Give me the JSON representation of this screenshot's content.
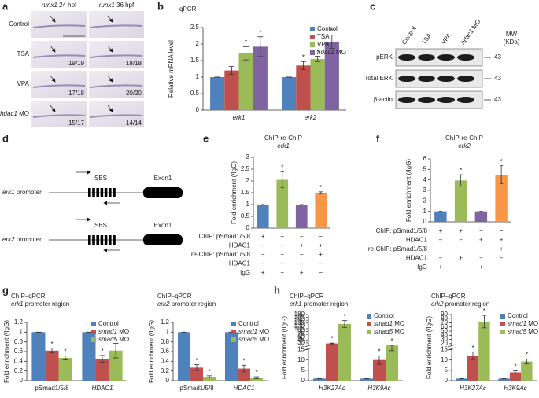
{
  "panel_a": {
    "label": "a",
    "columns": [
      "runx1 24 hpf",
      "runx1 36 hpf"
    ],
    "rows": [
      "Control",
      "TSA",
      "VPA",
      "hdac1 MO"
    ],
    "counts": [
      [
        null,
        null
      ],
      [
        "19/19",
        "18/18"
      ],
      [
        "17/18",
        "20/20"
      ],
      [
        "15/17",
        "14/14"
      ]
    ]
  },
  "panel_c": {
    "label": "c",
    "lanes": [
      "Control",
      "TSA",
      "VPA",
      "hdac1 MO"
    ],
    "mw": [
      "MW",
      "(KDa)"
    ],
    "blots": [
      {
        "name": "pERK",
        "size": 43
      },
      {
        "name": "Total ERK",
        "size": 43
      },
      {
        "name": "β-actin",
        "size": 43
      }
    ]
  },
  "panel_d": {
    "label": "d",
    "constructs": [
      {
        "name": "erk1 promoter",
        "site": "SBS",
        "exon": "Exon1"
      },
      {
        "name": "erk2 promoter",
        "site": "SBS",
        "exon": "Exon1"
      }
    ]
  },
  "chart_data": [
    {
      "type": "bar",
      "panel": "b",
      "title": "qPCR",
      "y_label": "Relative mRNA level",
      "categories": [
        "erk1",
        "erk2"
      ],
      "legend": "upper right",
      "series": [
        {
          "name": "Control",
          "color": "#4f81bd",
          "values": [
            1,
            1
          ],
          "errors": [
            0,
            0
          ],
          "significance": [
            null,
            null
          ]
        },
        {
          "name": "TSA",
          "color": "#c0504d",
          "values": [
            1.2,
            1.35
          ],
          "errors": [
            0.12,
            0.12
          ],
          "significance": [
            null,
            "*"
          ]
        },
        {
          "name": "VPA",
          "color": "#9bbb59",
          "values": [
            1.72,
            1.55
          ],
          "errors": [
            0.2,
            0.08
          ],
          "significance": [
            "*",
            "*"
          ]
        },
        {
          "name": "hdac1 MO",
          "color": "#8064a2",
          "values": [
            1.92,
            2.07
          ],
          "errors": [
            0.3,
            0.2
          ],
          "significance": [
            "*",
            "*"
          ]
        }
      ],
      "ylim": [
        0,
        2.5
      ],
      "yticks": [
        0,
        0.5,
        1,
        1.5,
        2,
        2.5
      ]
    },
    {
      "type": "bar",
      "panel": "e",
      "title": "ChIP-re-ChIP",
      "subtitle": "erk1",
      "y_label": "Fold enrichment (/IgG)",
      "values": [
        1,
        2.05,
        1,
        1.5
      ],
      "errors": [
        0,
        0.33,
        0,
        0.04
      ],
      "colors": [
        "#4f81bd",
        "#9bbb59",
        "#8064a2",
        "#f79646"
      ],
      "significance": [
        null,
        "*",
        null,
        "*"
      ],
      "ylim": [
        0,
        3
      ],
      "yticks": [
        0,
        0.5,
        1,
        1.5,
        2,
        2.5,
        3
      ],
      "conditions": {
        "rows": [
          "ChIP: pSmad1/5/8",
          "HDAC1",
          "re-ChIP: pSmad1/5/8",
          "HDAC1",
          "IgG"
        ],
        "signs": [
          [
            "+",
            "+",
            "−",
            "−"
          ],
          [
            "−",
            "−",
            "+",
            "+"
          ],
          [
            "−",
            "−",
            "−",
            "+"
          ],
          [
            "−",
            "+",
            "−",
            "−"
          ],
          [
            "+",
            "−",
            "+",
            "−"
          ]
        ]
      }
    },
    {
      "type": "bar",
      "panel": "f",
      "title": "ChIP-re-ChIP",
      "subtitle": "erk2",
      "y_label": "Fold enrichment (/IgG)",
      "values": [
        1,
        3.95,
        1,
        4.5
      ],
      "errors": [
        0,
        0.55,
        0,
        0.85
      ],
      "colors": [
        "#4f81bd",
        "#9bbb59",
        "#8064a2",
        "#f79646"
      ],
      "significance": [
        null,
        "*",
        null,
        "*"
      ],
      "ylim": [
        0,
        6
      ],
      "yticks": [
        0,
        1,
        2,
        3,
        4,
        5,
        6
      ],
      "conditions": {
        "rows": [
          "ChIP: pSmad1/5/8",
          "HDAC1",
          "re-ChIP: pSmad1/5/8",
          "HDAC1",
          "IgG"
        ],
        "signs": [
          [
            "+",
            "+",
            "−",
            "−"
          ],
          [
            "−",
            "−",
            "+",
            "+"
          ],
          [
            "−",
            "−",
            "−",
            "+"
          ],
          [
            "−",
            "+",
            "−",
            "−"
          ],
          [
            "+",
            "−",
            "+",
            "−"
          ]
        ]
      }
    },
    {
      "type": "bar",
      "panel": "g",
      "title": "ChIP–qPCR",
      "subtitle": "erk1 promoter region",
      "y_label": "Fold enrichment (/IgG)",
      "categories": [
        "pSmad1/5/8",
        "HDAC1"
      ],
      "legend": "upper right",
      "series": [
        {
          "name": "Control",
          "color": "#4f81bd",
          "values": [
            1,
            1
          ],
          "errors": [
            0,
            0
          ],
          "significance": [
            null,
            null
          ]
        },
        {
          "name": "smad1 MO",
          "color": "#c0504d",
          "values": [
            0.62,
            0.45
          ],
          "errors": [
            0.05,
            0.07
          ],
          "significance": [
            "*",
            "*"
          ]
        },
        {
          "name": "smad5 MO",
          "color": "#9bbb59",
          "values": [
            0.47,
            0.62
          ],
          "errors": [
            0.04,
            0.15
          ],
          "significance": [
            "*",
            "*"
          ]
        }
      ],
      "ylim": [
        0,
        1.2
      ],
      "yticks": [
        0,
        0.2,
        0.4,
        0.6,
        0.8,
        1,
        1.2
      ]
    },
    {
      "type": "bar",
      "title": "ChIP–qPCR",
      "subtitle": "erk2 promoter region",
      "y_label": "Fold enrichment (/IgG)",
      "categories": [
        "pSmad1/5/8",
        "HDAC1"
      ],
      "legend": "upper right",
      "series": [
        {
          "name": "Control",
          "color": "#4f81bd",
          "values": [
            1,
            1
          ],
          "errors": [
            0,
            0
          ],
          "significance": [
            null,
            null
          ]
        },
        {
          "name": "smad1 MO",
          "color": "#c0504d",
          "values": [
            0.27,
            0.25
          ],
          "errors": [
            0.06,
            0.07
          ],
          "significance": [
            "*",
            "*"
          ]
        },
        {
          "name": "smad5 MO",
          "color": "#9bbb59",
          "values": [
            0.08,
            0.06
          ],
          "errors": [
            0.02,
            0.02
          ],
          "significance": [
            "*",
            "*"
          ]
        }
      ],
      "ylim": [
        0,
        1.2
      ],
      "yticks": [
        0,
        0.2,
        0.4,
        0.6,
        0.8,
        1,
        1.2
      ]
    },
    {
      "type": "bar",
      "panel": "h",
      "title": "ChIP–qPCR",
      "subtitle": "erk1 promoter region",
      "y_label": "Fold enrichment (/IgG)",
      "categories": [
        "H3K27Ac",
        "H3K9Ac"
      ],
      "legend": "upper right",
      "series": [
        {
          "name": "Control",
          "color": "#4f81bd",
          "values": [
            1,
            1
          ],
          "errors": [
            0,
            0
          ],
          "significance": [
            null,
            null
          ]
        },
        {
          "name": "smad1 MO",
          "color": "#c0504d",
          "values": [
            27,
            10
          ],
          "errors": [
            2,
            2
          ],
          "significance": [
            "*",
            "*"
          ]
        },
        {
          "name": "smad5 MO",
          "color": "#9bbb59",
          "values": [
            130,
            16
          ],
          "errors": [
            18,
            1.5
          ],
          "significance": [
            "*",
            "*"
          ]
        }
      ],
      "ylim": [
        0,
        180
      ],
      "y_break": 15,
      "yticks": [
        0,
        5,
        10,
        15,
        30,
        45,
        60,
        75,
        90,
        105,
        120,
        135,
        150,
        165,
        180
      ]
    },
    {
      "type": "bar",
      "title": "ChIP–qPCR",
      "subtitle": "erk2 promoter region",
      "y_label": "Fold enrichment (/IgG)",
      "categories": [
        "H3K27Ac",
        "H3K9Ac"
      ],
      "legend": "upper right",
      "series": [
        {
          "name": "Control",
          "color": "#4f81bd",
          "values": [
            1,
            1
          ],
          "errors": [
            0,
            0
          ],
          "significance": [
            null,
            null
          ]
        },
        {
          "name": "smad1 MO",
          "color": "#c0504d",
          "values": [
            12,
            4
          ],
          "errors": [
            1.8,
            0.8
          ],
          "significance": [
            "*",
            "*"
          ]
        },
        {
          "name": "smad5 MO",
          "color": "#9bbb59",
          "values": [
            73,
            9.3
          ],
          "errors": [
            15,
            1.2
          ],
          "significance": [
            "*",
            "*"
          ]
        }
      ],
      "ylim": [
        0,
        90
      ],
      "y_break": 15,
      "yticks": [
        0,
        5,
        10,
        15,
        20,
        30,
        40,
        50,
        60,
        70,
        80,
        90
      ]
    }
  ]
}
